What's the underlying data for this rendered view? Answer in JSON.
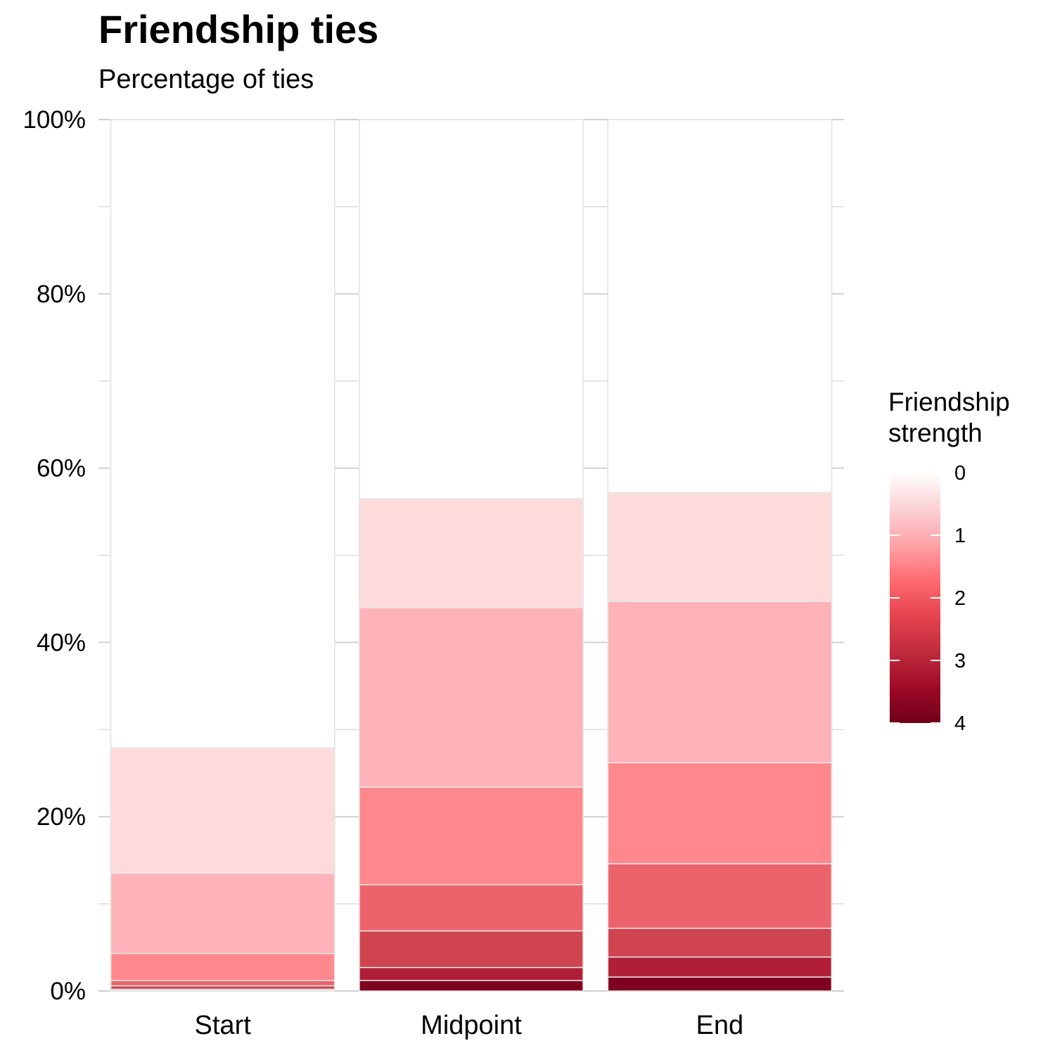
{
  "chart_data": {
    "type": "bar",
    "stacked": true,
    "title": "Friendship ties",
    "subtitle": "Percentage of ties",
    "xlabel": "",
    "ylabel": "",
    "categories": [
      "Start",
      "Midpoint",
      "End"
    ],
    "y_tick_labels": [
      "0%",
      "20%",
      "40%",
      "60%",
      "80%",
      "100%"
    ],
    "ylim": [
      0,
      100
    ],
    "grid": true,
    "series": [
      {
        "level": 4,
        "color": "#7f0020",
        "values": [
          0.1,
          1.2,
          1.6
        ]
      },
      {
        "level": 3.5,
        "color": "#b01e38",
        "values": [
          0.1,
          1.5,
          2.3
        ]
      },
      {
        "level": 3,
        "color": "#d04450",
        "values": [
          0.4,
          4.2,
          3.3
        ]
      },
      {
        "level": 2.5,
        "color": "#ec636c",
        "values": [
          0.6,
          5.3,
          7.4
        ]
      },
      {
        "level": 2,
        "color": "#ff888d",
        "values": [
          3.1,
          11.2,
          11.6
        ]
      },
      {
        "level": 1,
        "color": "#ffb2b8",
        "values": [
          9.2,
          20.6,
          18.5
        ]
      },
      {
        "level": 0.5,
        "color": "#fddbdb",
        "values": [
          14.4,
          12.5,
          12.5
        ]
      },
      {
        "level": 0,
        "color": "#ffffff",
        "values": [
          72.1,
          43.5,
          42.8
        ]
      }
    ],
    "legend": {
      "title_line1": "Friendship",
      "title_line2": "strength",
      "placement": "right",
      "type": "colorbar",
      "labels": [
        "0",
        "1",
        "2",
        "3",
        "4"
      ],
      "gradient_stops": [
        "#ffffff",
        "#fcd2d5",
        "#ffa4aa",
        "#ff6b70",
        "#e6434e",
        "#c02c3d",
        "#9f0a27",
        "#6e0018"
      ]
    }
  }
}
